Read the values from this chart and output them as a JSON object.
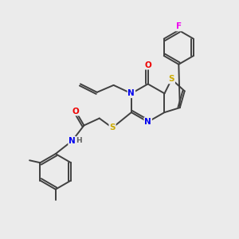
{
  "background_color": "#ebebeb",
  "atom_colors": {
    "C": "#404040",
    "N": "#0000ee",
    "O": "#ee0000",
    "S": "#ccaa00",
    "F": "#ee00ee",
    "H": "#606060"
  },
  "bond_color": "#404040",
  "bond_lw": 1.4,
  "figsize": [
    3.0,
    3.0
  ],
  "dpi": 100
}
